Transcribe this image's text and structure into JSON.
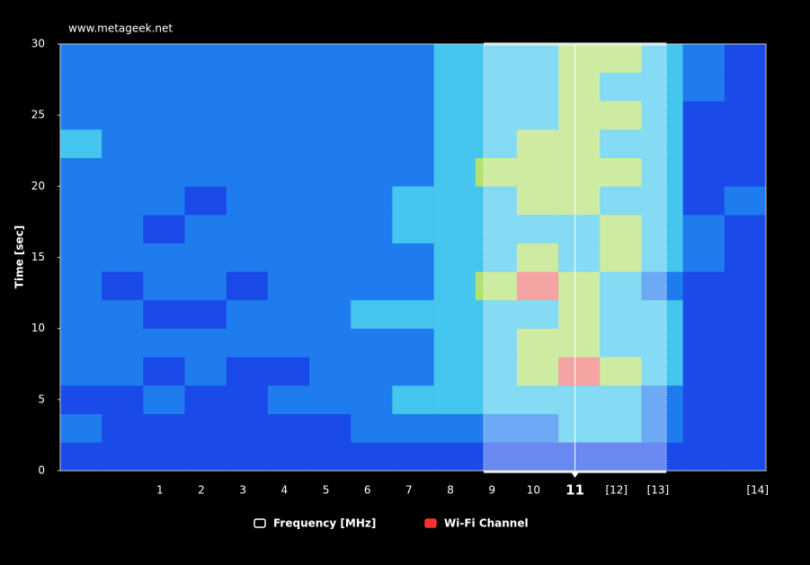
{
  "chart_data": {
    "type": "heatmap",
    "source": "www.metageek.net",
    "ylabel": "Time [sec]",
    "xlim": [
      2400,
      2485
    ],
    "ylim": [
      0,
      30
    ],
    "yticks": [
      0,
      5,
      10,
      15,
      20,
      25,
      30
    ],
    "xticks": [
      {
        "value": 2412,
        "label": "1"
      },
      {
        "value": 2417,
        "label": "2"
      },
      {
        "value": 2422,
        "label": "3"
      },
      {
        "value": 2427,
        "label": "4"
      },
      {
        "value": 2432,
        "label": "5"
      },
      {
        "value": 2437,
        "label": "6"
      },
      {
        "value": 2442,
        "label": "7"
      },
      {
        "value": 2447,
        "label": "8"
      },
      {
        "value": 2452,
        "label": "9"
      },
      {
        "value": 2457,
        "label": "10"
      },
      {
        "value": 2462,
        "label": "11"
      },
      {
        "value": 2467,
        "label": "[12]"
      },
      {
        "value": 2472,
        "label": "[13]"
      },
      {
        "value": 2484,
        "label": "[14]"
      }
    ],
    "x_bins": [
      2400,
      2405,
      2410,
      2415,
      2420,
      2425,
      2430,
      2435,
      2440,
      2445,
      2450,
      2455,
      2460,
      2465,
      2470,
      2475,
      2480,
      2485
    ],
    "y_bins": [
      0,
      2,
      4,
      6,
      8,
      10,
      12,
      14,
      16,
      18,
      20,
      22,
      24,
      26,
      28,
      30
    ],
    "z": [
      [
        0,
        0,
        0,
        0,
        0,
        0,
        0,
        0,
        0,
        0,
        0,
        0,
        0,
        0,
        0,
        0,
        0
      ],
      [
        1,
        0,
        0,
        0,
        0,
        0,
        0,
        1,
        1,
        1,
        1,
        1,
        2,
        2,
        1,
        0,
        0
      ],
      [
        0,
        0,
        1,
        0,
        0,
        1,
        1,
        1,
        2,
        2,
        2,
        2,
        2,
        2,
        1,
        0,
        0
      ],
      [
        1,
        1,
        0,
        1,
        0,
        0,
        1,
        1,
        1,
        2,
        2,
        3,
        4,
        3,
        2,
        0,
        0
      ],
      [
        1,
        1,
        1,
        1,
        1,
        1,
        1,
        1,
        1,
        2,
        2,
        3,
        3,
        2,
        2,
        0,
        0
      ],
      [
        1,
        1,
        0,
        0,
        1,
        1,
        1,
        2,
        2,
        2,
        2,
        2,
        3,
        2,
        2,
        0,
        0
      ],
      [
        1,
        0,
        1,
        1,
        0,
        1,
        1,
        1,
        1,
        2,
        3,
        4,
        3,
        2,
        1,
        0,
        0
      ],
      [
        1,
        1,
        1,
        1,
        1,
        1,
        1,
        1,
        1,
        2,
        2,
        3,
        2,
        3,
        2,
        1,
        0
      ],
      [
        1,
        1,
        0,
        1,
        1,
        1,
        1,
        1,
        2,
        2,
        2,
        2,
        2,
        3,
        2,
        1,
        0
      ],
      [
        1,
        1,
        1,
        0,
        1,
        1,
        1,
        1,
        2,
        2,
        2,
        3,
        3,
        2,
        2,
        0,
        1
      ],
      [
        1,
        1,
        1,
        1,
        1,
        1,
        1,
        1,
        1,
        2,
        3,
        3,
        3,
        3,
        2,
        0,
        0
      ],
      [
        2,
        1,
        1,
        1,
        1,
        1,
        1,
        1,
        1,
        2,
        2,
        3,
        3,
        2,
        2,
        0,
        0
      ],
      [
        1,
        1,
        1,
        1,
        1,
        1,
        1,
        1,
        1,
        2,
        2,
        2,
        3,
        3,
        2,
        0,
        0
      ],
      [
        1,
        1,
        1,
        1,
        1,
        1,
        1,
        1,
        1,
        2,
        2,
        2,
        3,
        2,
        2,
        1,
        0
      ],
      [
        1,
        1,
        1,
        1,
        1,
        1,
        1,
        1,
        1,
        2,
        2,
        2,
        3,
        3,
        2,
        1,
        0
      ]
    ],
    "colormap": [
      "#1a4be8",
      "#1f7cef",
      "#44c6ee",
      "#b4e070",
      "#f07474"
    ],
    "selected_channel": {
      "center": 2462,
      "range": [
        2451,
        2473
      ]
    },
    "legend": [
      {
        "name": "Frequency [MHz]",
        "color": "#ffffff"
      },
      {
        "name": "Wi-Fi Channel",
        "color": "#ff3030"
      }
    ]
  }
}
